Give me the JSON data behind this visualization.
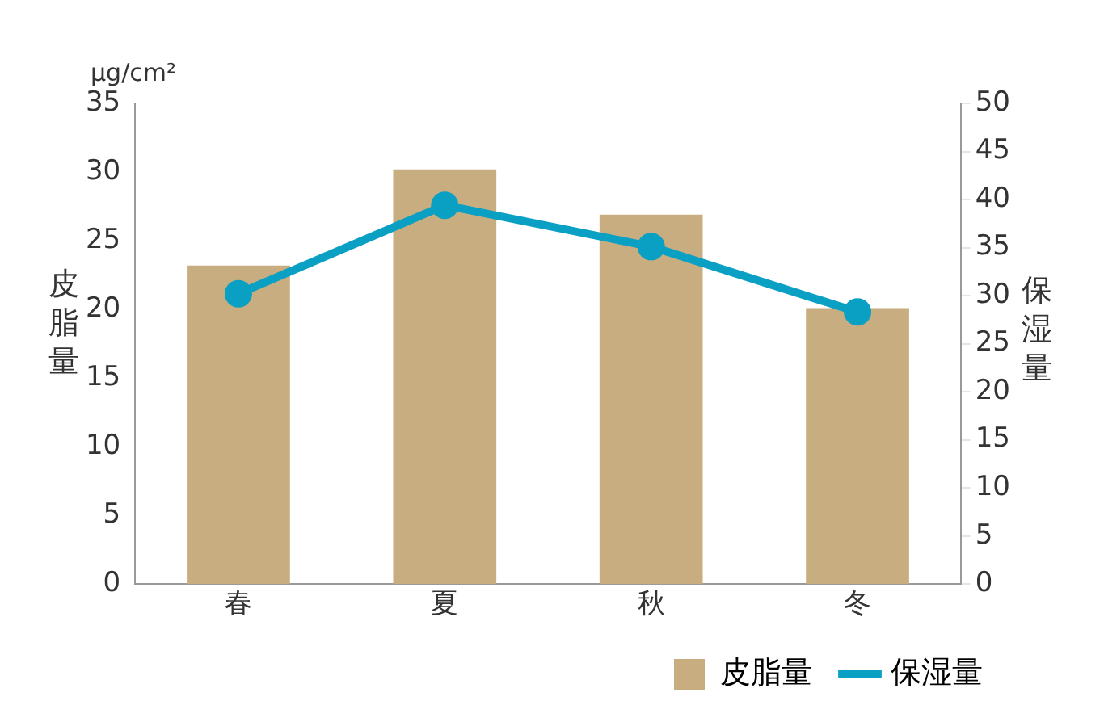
{
  "chart_data": {
    "type": "bar",
    "ylabel": "皮脂量",
    "y2label": "保湿量",
    "annotations": [
      "μg/cm²"
    ],
    "categories": [
      "春",
      "夏",
      "秋",
      "冬"
    ],
    "series": [
      {
        "name": "皮脂量",
        "color": "#c8ad80",
        "values": [
          23.2,
          30.2,
          26.9,
          20.1
        ]
      },
      {
        "name": "保湿量",
        "type": "line",
        "axis": "y2",
        "color": "#0aa0c4",
        "values": [
          30.2,
          39.4,
          35.1,
          28.3
        ],
        "marker": "circle"
      }
    ],
    "ylim": [
      0,
      35
    ],
    "yticks": [
      0,
      5,
      10,
      15,
      20,
      25,
      30,
      35
    ],
    "y2lim": [
      0,
      50
    ],
    "y2ticks": [
      0,
      5,
      10,
      15,
      20,
      25,
      30,
      35,
      40,
      45,
      50
    ],
    "grid": false,
    "legend": "bottom right"
  }
}
